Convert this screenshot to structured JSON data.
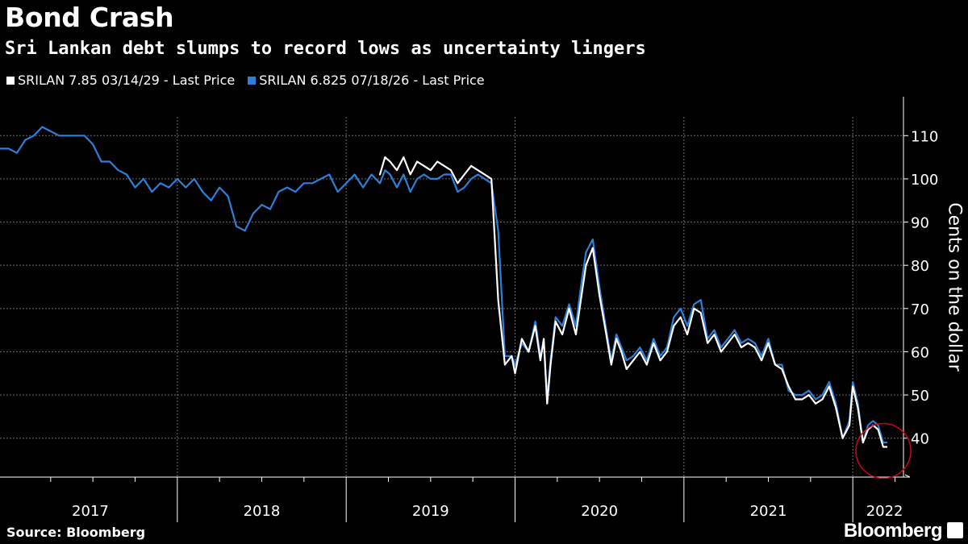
{
  "header": {
    "title": "Bond Crash",
    "subtitle": "Sri Lankan debt slumps to record lows as uncertainty lingers"
  },
  "footer": {
    "source": "Source: Bloomberg",
    "brand": "Bloomberg"
  },
  "colors": {
    "background": "#000000",
    "series_white": "#ffffff",
    "series_blue": "#2f7fd8",
    "grid": "#6e6e6e",
    "annotation_circle": "#d0021b"
  },
  "chart_data": {
    "type": "line",
    "title": "Bond Crash",
    "subtitle": "Sri Lankan debt slumps to record lows as uncertainty lingers",
    "ylabel": "Cents on the dollar",
    "xlabel": "",
    "ylim": [
      31,
      119
    ],
    "yticks": [
      40,
      50,
      60,
      70,
      80,
      90,
      100,
      110
    ],
    "xlim": [
      2016.95,
      2022.3
    ],
    "xticks": [
      2017,
      2018,
      2019,
      2020,
      2021,
      2022
    ],
    "xtick_labels": [
      "2017",
      "2018",
      "2019",
      "2020",
      "2021",
      "2022"
    ],
    "grid": true,
    "legend_position": "top-left",
    "annotation": {
      "type": "circle",
      "x": 2022.2,
      "y": 38,
      "note": "record low highlighted"
    },
    "series": [
      {
        "name": "SRILAN 7.85 03/14/29 - Last Price",
        "color": "#ffffff",
        "x": [
          2019.2,
          2019.23,
          2019.26,
          2019.3,
          2019.34,
          2019.38,
          2019.42,
          2019.46,
          2019.5,
          2019.54,
          2019.58,
          2019.62,
          2019.66,
          2019.7,
          2019.74,
          2019.78,
          2019.82,
          2019.86,
          2019.9,
          2019.94,
          2019.98,
          2020.0,
          2020.04,
          2020.08,
          2020.12,
          2020.15,
          2020.17,
          2020.19,
          2020.21,
          2020.24,
          2020.28,
          2020.32,
          2020.36,
          2020.39,
          2020.42,
          2020.46,
          2020.5,
          2020.54,
          2020.57,
          2020.6,
          2020.63,
          2020.66,
          2020.7,
          2020.74,
          2020.78,
          2020.82,
          2020.86,
          2020.9,
          2020.94,
          2020.98,
          2021.02,
          2021.06,
          2021.1,
          2021.14,
          2021.18,
          2021.22,
          2021.26,
          2021.3,
          2021.34,
          2021.38,
          2021.42,
          2021.46,
          2021.5,
          2021.54,
          2021.58,
          2021.62,
          2021.66,
          2021.7,
          2021.74,
          2021.78,
          2021.82,
          2021.86,
          2021.9,
          2021.94,
          2021.98,
          2022.0,
          2022.03,
          2022.06,
          2022.09,
          2022.12,
          2022.15,
          2022.18,
          2022.2
        ],
        "values": [
          101,
          105,
          104,
          102,
          105,
          101,
          104,
          103,
          102,
          104,
          103,
          102,
          99,
          101,
          103,
          102,
          101,
          100,
          72,
          57,
          59,
          55,
          63,
          60,
          66,
          58,
          63,
          48,
          57,
          67,
          64,
          70,
          64,
          72,
          80,
          84,
          73,
          64,
          57,
          63,
          60,
          56,
          58,
          60,
          57,
          62,
          58,
          60,
          66,
          68,
          64,
          70,
          69,
          62,
          64,
          60,
          62,
          64,
          61,
          62,
          61,
          58,
          62,
          57,
          56,
          52,
          49,
          49,
          50,
          48,
          49,
          52,
          47,
          40,
          43,
          52,
          47,
          39,
          42,
          43,
          42,
          38,
          38
        ]
      },
      {
        "name": "SRILAN 6.825 07/18/26 - Last Price",
        "color": "#2f7fd8",
        "x": [
          2016.95,
          2017.0,
          2017.05,
          2017.1,
          2017.15,
          2017.2,
          2017.25,
          2017.3,
          2017.35,
          2017.4,
          2017.45,
          2017.5,
          2017.55,
          2017.6,
          2017.65,
          2017.7,
          2017.75,
          2017.8,
          2017.85,
          2017.9,
          2017.95,
          2018.0,
          2018.05,
          2018.1,
          2018.15,
          2018.2,
          2018.25,
          2018.3,
          2018.35,
          2018.4,
          2018.45,
          2018.5,
          2018.55,
          2018.6,
          2018.65,
          2018.7,
          2018.75,
          2018.8,
          2018.85,
          2018.9,
          2018.95,
          2019.0,
          2019.05,
          2019.1,
          2019.15,
          2019.2,
          2019.23,
          2019.26,
          2019.3,
          2019.34,
          2019.38,
          2019.42,
          2019.46,
          2019.5,
          2019.54,
          2019.58,
          2019.62,
          2019.66,
          2019.7,
          2019.74,
          2019.78,
          2019.82,
          2019.86,
          2019.9,
          2019.94,
          2019.98,
          2020.0,
          2020.04,
          2020.08,
          2020.12,
          2020.15,
          2020.17,
          2020.19,
          2020.21,
          2020.24,
          2020.28,
          2020.32,
          2020.36,
          2020.39,
          2020.42,
          2020.46,
          2020.5,
          2020.54,
          2020.57,
          2020.6,
          2020.63,
          2020.66,
          2020.7,
          2020.74,
          2020.78,
          2020.82,
          2020.86,
          2020.9,
          2020.94,
          2020.98,
          2021.02,
          2021.06,
          2021.1,
          2021.14,
          2021.18,
          2021.22,
          2021.26,
          2021.3,
          2021.34,
          2021.38,
          2021.42,
          2021.46,
          2021.5,
          2021.54,
          2021.58,
          2021.62,
          2021.66,
          2021.7,
          2021.74,
          2021.78,
          2021.82,
          2021.86,
          2021.9,
          2021.94,
          2021.98,
          2022.0,
          2022.03,
          2022.06,
          2022.09,
          2022.12,
          2022.15,
          2022.18,
          2022.2
        ],
        "values": [
          107,
          107,
          106,
          109,
          110,
          112,
          111,
          110,
          110,
          110,
          110,
          108,
          104,
          104,
          102,
          101,
          98,
          100,
          97,
          99,
          98,
          100,
          98,
          100,
          97,
          95,
          98,
          96,
          89,
          88,
          92,
          94,
          93,
          97,
          98,
          97,
          99,
          99,
          100,
          101,
          97,
          99,
          101,
          98,
          101,
          99,
          102,
          101,
          98,
          101,
          97,
          100,
          101,
          100,
          100,
          101,
          101,
          97,
          98,
          100,
          101,
          100,
          99,
          88,
          59,
          59,
          57,
          62,
          60,
          67,
          59,
          62,
          49,
          58,
          68,
          66,
          71,
          66,
          75,
          83,
          86,
          75,
          65,
          58,
          64,
          61,
          58,
          59,
          61,
          58,
          63,
          59,
          61,
          68,
          70,
          66,
          71,
          72,
          63,
          65,
          61,
          63,
          65,
          62,
          63,
          62,
          59,
          63,
          57,
          57,
          51,
          50,
          50,
          51,
          49,
          50,
          53,
          48,
          40,
          44,
          53,
          48,
          39,
          43,
          44,
          43,
          39,
          39
        ]
      }
    ]
  }
}
